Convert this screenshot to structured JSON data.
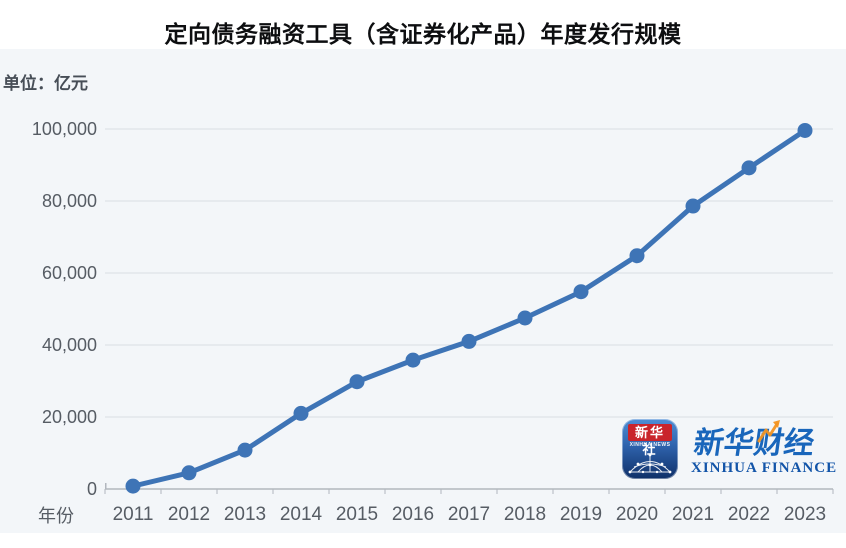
{
  "chart_data": {
    "type": "line",
    "title": "定向债务融资工具（含证券化产品）年度发行规模",
    "xlabel": "年份",
    "ylabel": "单位：亿元",
    "x": [
      "2011",
      "2012",
      "2013",
      "2014",
      "2015",
      "2016",
      "2017",
      "2018",
      "2019",
      "2020",
      "2021",
      "2022",
      "2023"
    ],
    "values": [
      800,
      4500,
      10800,
      21000,
      29800,
      35800,
      41000,
      47500,
      54800,
      64800,
      78600,
      89200,
      99600
    ],
    "ylim": [
      0,
      100000
    ],
    "yticks": [
      0,
      20000,
      40000,
      60000,
      80000,
      100000
    ],
    "grid": true,
    "legend_position": "none",
    "marker": "circle"
  },
  "colors": {
    "line": "#3e74b6",
    "grid": "#d9dde3",
    "axis_line": "#b2b7be",
    "axis_text": "#565c64",
    "panel_bg": "#f3f6f9",
    "title_text": "#0d0e10",
    "unit_text": "#474e57",
    "brand_blue": "#1966bb",
    "brand_dark_blue": "#1254a8",
    "icon_red": "#c9242b",
    "accent_orange": "#f29422"
  },
  "logo": {
    "icon_cn": "新华社",
    "icon_en": "XINHUA NEWS",
    "brand_cn": "新华财经",
    "brand_en": "XINHUA FINANCE"
  }
}
